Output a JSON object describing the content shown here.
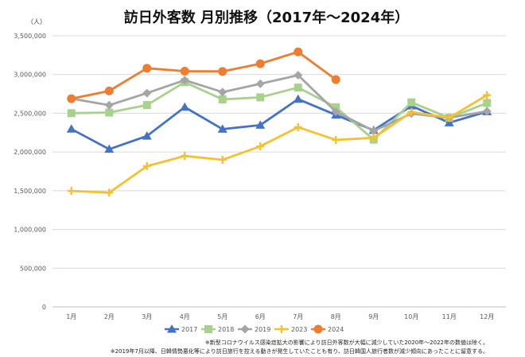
{
  "colors": {
    "2017": "#4472C4",
    "2018": "#A9D18E",
    "2019": "#A5A5A5",
    "2023": "#F4C131",
    "2024": "#ED7D31"
  },
  "notes": [
    "※新型コロナウイルス感染症拡大の影響により訪日外客数が大幅に減少していた2020年～2022年の数値は除く。",
    "※2019年7月以降、日韓情勢悪化等により訪日旅行を控える動きが発生していたことも有り、訪日韓国人旅行者数が減少傾向にあったことに留意する。"
  ],
  "chart_data": {
    "type": "line",
    "title": "訪日外客数 月別推移（2017年～2024年）",
    "unit_label": "（人）",
    "categories": [
      "1月",
      "2月",
      "3月",
      "4月",
      "5月",
      "6月",
      "7月",
      "8月",
      "9月",
      "10月",
      "11月",
      "12月"
    ],
    "ylim": [
      0,
      3500000
    ],
    "yticks": [
      {
        "value": 0,
        "label": "0"
      },
      {
        "value": 500000,
        "label": "500,000"
      },
      {
        "value": 1000000,
        "label": "1,000,000"
      },
      {
        "value": 1500000,
        "label": "1,500,000"
      },
      {
        "value": 2000000,
        "label": "2,000,000"
      },
      {
        "value": 2500000,
        "label": "2,500,000"
      },
      {
        "value": 3000000,
        "label": "3,000,000"
      },
      {
        "value": 3500000,
        "label": "3,500,000"
      }
    ],
    "grid": true,
    "legend_position": "bottom",
    "series": [
      {
        "name": "2017",
        "marker": "triangle",
        "values": [
          2296000,
          2036000,
          2206000,
          2579000,
          2295000,
          2347000,
          2682000,
          2478000,
          2280000,
          2595000,
          2378000,
          2521000
        ]
      },
      {
        "name": "2018",
        "marker": "square",
        "values": [
          2501000,
          2509000,
          2606000,
          2901000,
          2679000,
          2705000,
          2832000,
          2578000,
          2159000,
          2641000,
          2441000,
          2632000
        ]
      },
      {
        "name": "2019",
        "marker": "diamond",
        "values": [
          2689000,
          2604000,
          2760000,
          2927000,
          2773000,
          2880000,
          2991000,
          2520000,
          2272000,
          2496000,
          2441000,
          2526000
        ]
      },
      {
        "name": "2023",
        "marker": "cross",
        "values": [
          1497000,
          1475000,
          1817000,
          1949000,
          1899000,
          2073000,
          2320000,
          2156000,
          2183000,
          2516000,
          2442000,
          2734000
        ]
      },
      {
        "name": "2024",
        "marker": "circle",
        "values": [
          2688000,
          2788000,
          3081000,
          3043000,
          3040000,
          3140000,
          3292000,
          2934000,
          null,
          null,
          null,
          null
        ]
      }
    ]
  }
}
